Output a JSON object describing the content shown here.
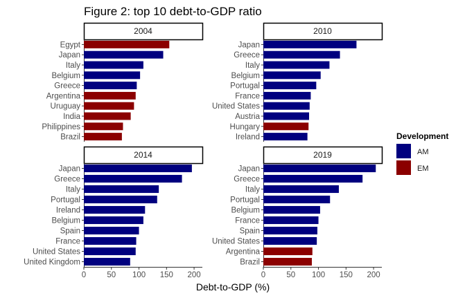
{
  "chart_data": {
    "type": "bar",
    "orientation": "horizontal",
    "title": "Figure 2: top 10 debt-to-GDP ratio",
    "xlabel": "Debt-to-GDP (%)",
    "ylabel": "",
    "xlim": [
      0,
      215
    ],
    "x_ticks": [
      0,
      50,
      100,
      150,
      200
    ],
    "legend": {
      "title": "Development",
      "position": "right",
      "entries": [
        {
          "label": "AM",
          "color": "#00007f"
        },
        {
          "label": "EM",
          "color": "#8b0000"
        }
      ]
    },
    "panels": [
      {
        "label": "2004",
        "categories": [
          "Egypt",
          "Japan",
          "Italy",
          "Belgium",
          "Greece",
          "Argentina",
          "Uruguay",
          "India",
          "Philippines",
          "Brazil"
        ],
        "values": [
          155,
          144,
          108,
          102,
          96,
          94,
          91,
          85,
          71,
          69
        ],
        "groups": [
          "EM",
          "AM",
          "AM",
          "AM",
          "AM",
          "EM",
          "EM",
          "EM",
          "EM",
          "EM"
        ]
      },
      {
        "label": "2010",
        "categories": [
          "Japan",
          "Greece",
          "Italy",
          "Belgium",
          "Portugal",
          "France",
          "United States",
          "Austria",
          "Hungary",
          "Ireland"
        ],
        "values": [
          169,
          139,
          120,
          104,
          96,
          86,
          84,
          83,
          82,
          80
        ],
        "groups": [
          "AM",
          "AM",
          "AM",
          "AM",
          "AM",
          "AM",
          "AM",
          "AM",
          "EM",
          "AM"
        ]
      },
      {
        "label": "2014",
        "categories": [
          "Japan",
          "Greece",
          "Italy",
          "Portugal",
          "Ireland",
          "Belgium",
          "Spain",
          "France",
          "United States",
          "United Kingdom"
        ],
        "values": [
          196,
          178,
          136,
          133,
          111,
          108,
          100,
          95,
          94,
          84
        ],
        "groups": [
          "AM",
          "AM",
          "AM",
          "AM",
          "AM",
          "AM",
          "AM",
          "AM",
          "AM",
          "AM"
        ]
      },
      {
        "label": "2019",
        "categories": [
          "Japan",
          "Greece",
          "Italy",
          "Portugal",
          "Belgium",
          "France",
          "Spain",
          "United States",
          "Argentina",
          "Brazil"
        ],
        "values": [
          204,
          180,
          137,
          121,
          103,
          100,
          98,
          97,
          89,
          88
        ],
        "groups": [
          "AM",
          "AM",
          "AM",
          "AM",
          "AM",
          "AM",
          "AM",
          "AM",
          "EM",
          "EM"
        ]
      }
    ]
  }
}
